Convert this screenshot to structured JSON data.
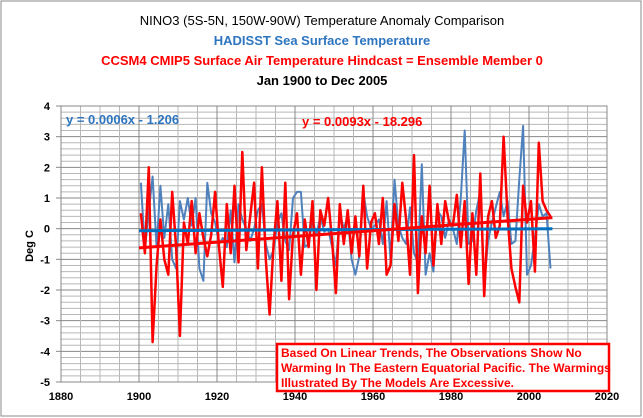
{
  "chart_data": {
    "type": "line",
    "title": "NINO3 (5S-5N, 150W-90W) Temperature Anomaly Comparison",
    "subtitles": [
      {
        "text": "HADISST Sea Surface Temperature",
        "color": "#2e75c0"
      },
      {
        "text": "CCSM4 CMIP5 Surface Air Temperature Hindcast = Ensemble Member 0",
        "color": "#ff0000"
      },
      {
        "text": "Jan 1900 to Dec 2005",
        "color": "#000000"
      }
    ],
    "xlabel": "",
    "ylabel": "Deg C",
    "xlim": [
      1880,
      2020
    ],
    "ylim": [
      -5,
      4
    ],
    "xticks": [
      1880,
      1900,
      1920,
      1940,
      1960,
      1980,
      2000,
      2020
    ],
    "yticks": [
      4,
      3,
      2,
      1,
      0,
      -1,
      -2,
      -3,
      -4,
      -5
    ],
    "grid": true,
    "x_start": 1900,
    "series": [
      {
        "name": "HADISST Sea Surface Temperature",
        "color": "#4f81bd",
        "values": [
          1.5,
          -0.7,
          0.6,
          1.7,
          -0.6,
          1.4,
          -0.3,
          0.8,
          -1.0,
          -1.3,
          0.9,
          0.3,
          1.0,
          0.1,
          1.0,
          -1.3,
          -1.7,
          1.5,
          0.5,
          0.2,
          -0.5,
          -0.3,
          -0.6,
          0.6,
          -1.1,
          0.8,
          0.3,
          0.0,
          -0.4,
          0.0,
          0.6,
          0.8,
          -0.5,
          -1.0,
          -0.7,
          0.2,
          0.5,
          -0.4,
          -0.7,
          1.0,
          1.2,
          1.2,
          -0.6,
          -0.5,
          0.3,
          -0.2,
          0.4,
          -0.1,
          0.0,
          -0.6,
          -1.2,
          0.5,
          0.0,
          0.4,
          -1.0,
          -1.5,
          -0.9,
          1.2,
          0.4,
          0.0,
          0.1,
          0.3,
          -0.5,
          0.9,
          -1.0,
          1.6,
          0.1,
          -0.3,
          -0.5,
          0.7,
          -0.8,
          -1.1,
          2.1,
          -1.5,
          -0.8,
          -1.4,
          0.6,
          0.4,
          -0.3,
          0.3,
          0.0,
          -0.5,
          1.0,
          3.2,
          -0.5,
          -0.4,
          0.6,
          1.2,
          -1.8,
          -0.4,
          0.2,
          0.7,
          1.2,
          0.4,
          0.9,
          -0.5,
          -0.4,
          1.6,
          3.35,
          -1.5,
          -1.2,
          -0.3,
          0.8,
          0.4,
          0.5,
          -1.3
        ],
        "trend": {
          "label": "y = 0.0006x - 1.206",
          "slope": 0.0006,
          "intercept": -1.206,
          "color": "#0070c0"
        }
      },
      {
        "name": "CCSM4 CMIP5 Surface Air Temperature Hindcast",
        "color": "#ff0000",
        "values": [
          0.5,
          -0.8,
          2.0,
          -3.7,
          -1.2,
          0.3,
          -1.0,
          -1.5,
          1.2,
          -0.6,
          -3.5,
          0.2,
          -0.5,
          0.9,
          -0.8,
          0.5,
          -0.3,
          -0.9,
          -0.2,
          1.2,
          -0.6,
          -1.9,
          0.8,
          -0.8,
          1.4,
          -1.1,
          2.5,
          -0.7,
          0.4,
          1.5,
          -1.3,
          2.0,
          -1.0,
          -2.8,
          -0.5,
          0.9,
          -1.7,
          1.5,
          -2.3,
          -0.2,
          0.5,
          -1.5,
          0.3,
          -0.6,
          0.9,
          -2.0,
          0.6,
          0.1,
          1.0,
          -0.4,
          -2.1,
          0.8,
          -0.5,
          0.6,
          -0.8,
          0.4,
          -0.9,
          1.4,
          -1.3,
          0.2,
          0.5,
          -0.5,
          1.0,
          -1.5,
          -1.2,
          0.8,
          -0.4,
          1.5,
          0.3,
          -1.5,
          2.4,
          -2.1,
          0.4,
          -0.8,
          1.4,
          -1.2,
          0.8,
          -0.5,
          0.9,
          0.2,
          0.1,
          1.1,
          -0.6,
          0.9,
          -1.8,
          0.5,
          -1.5,
          1.8,
          -2.2,
          0.4,
          0.9,
          -0.3,
          0.1,
          3.0,
          0.4,
          -1.3,
          -1.9,
          -2.4,
          1.4,
          0.2,
          0.9,
          -1.4,
          2.8,
          0.9,
          0.6,
          0.4
        ],
        "trend": {
          "label": "y = 0.0093x - 18.296",
          "slope": 0.0093,
          "intercept": -18.296,
          "color": "#ff0000"
        }
      }
    ],
    "annotation": {
      "lines": [
        "Based On Linear Trends, The Observations Show No",
        "Warming In The Eastern Equatorial Pacific.  The Warmings",
        "Illustrated By The Models Are Excessive."
      ],
      "color": "#ff0000"
    }
  }
}
